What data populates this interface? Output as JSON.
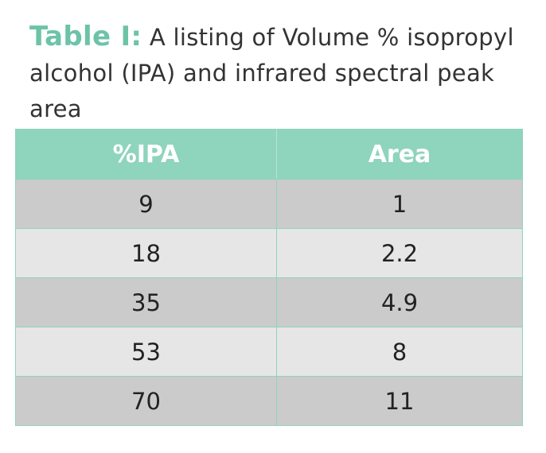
{
  "caption": {
    "label": "Table I:",
    "text": "A listing of Volume % isopropyl alcohol (IPA) and infrared spectral peak area"
  },
  "table": {
    "headers": [
      "%IPA",
      "Area"
    ],
    "rows": [
      [
        "9",
        "1"
      ],
      [
        "18",
        "2.2"
      ],
      [
        "35",
        "4.9"
      ],
      [
        "53",
        "8"
      ],
      [
        "70",
        "11"
      ]
    ]
  },
  "colors": {
    "accent": "#6cc3a8",
    "header_bg": "#8fd4bd",
    "row_dark": "#cbcbcb",
    "row_light": "#e6e6e6"
  }
}
